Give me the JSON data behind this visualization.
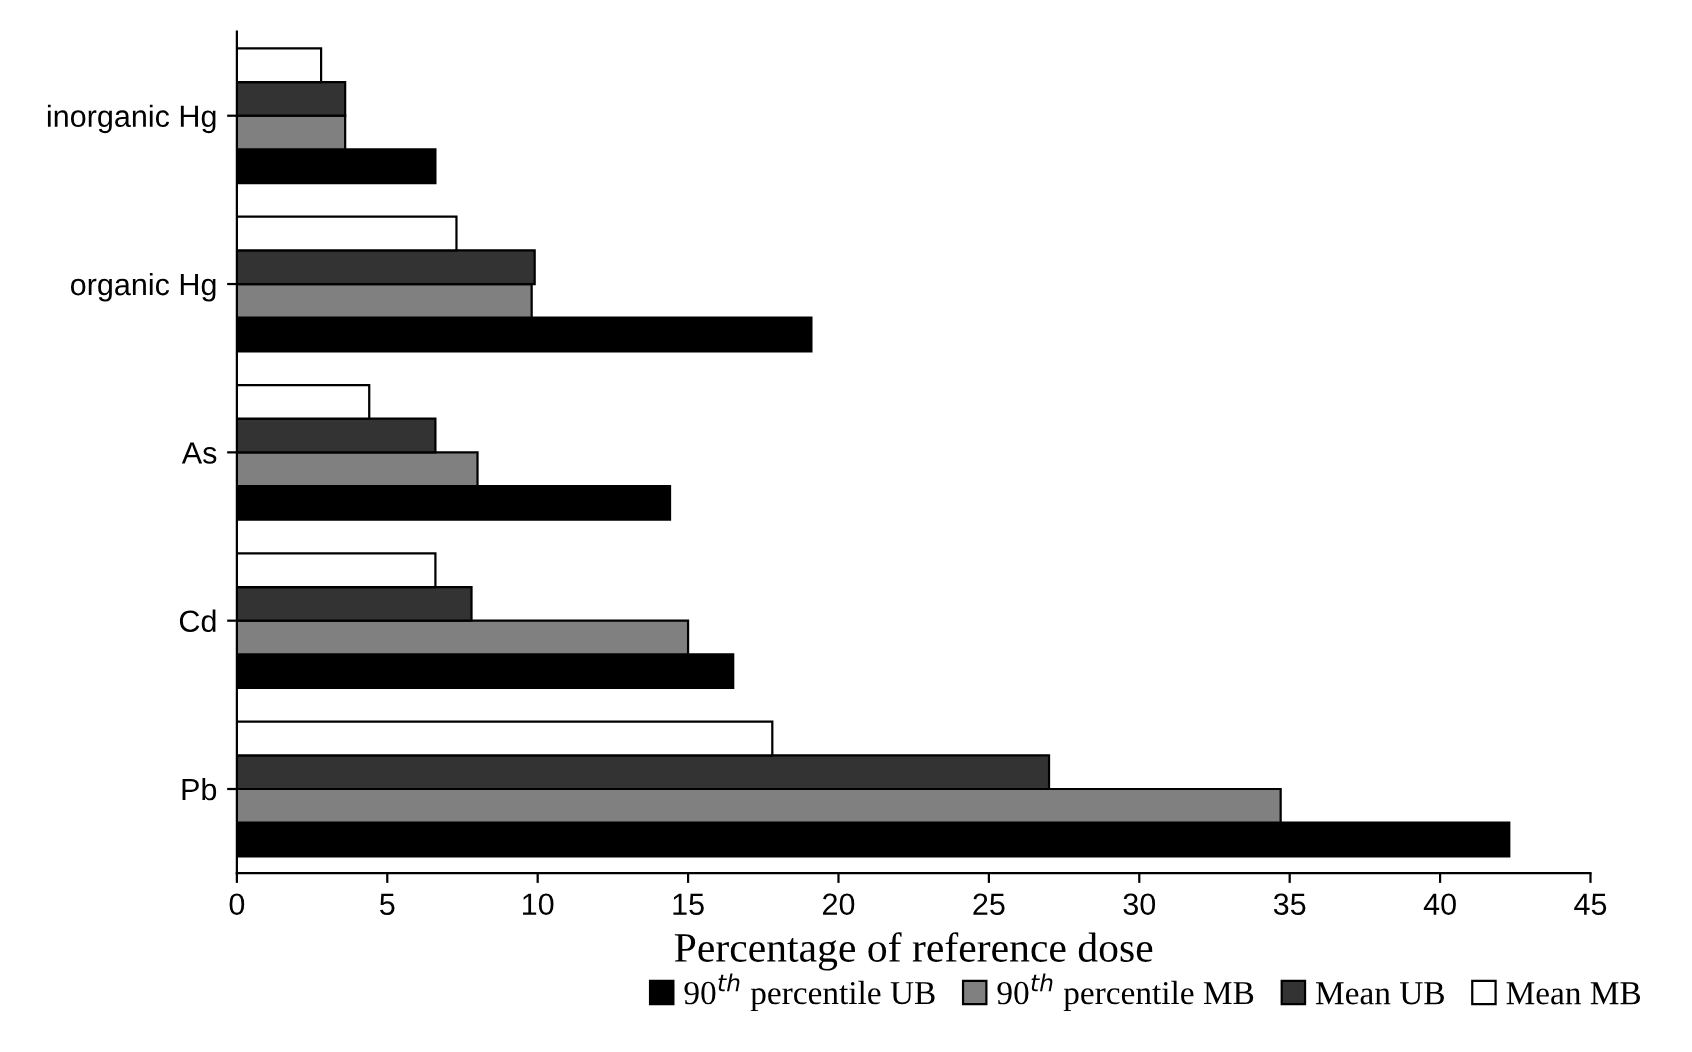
{
  "chart_data": {
    "type": "bar",
    "orientation": "horizontal",
    "xlabel": "Percentage of reference dose",
    "categories": [
      "inorganic Hg",
      "organic Hg",
      "As",
      "Cd",
      "Pb"
    ],
    "series": [
      {
        "name": "90$^{th}$ percentile UB",
        "color": "#000000",
        "values": [
          6.6,
          19.1,
          14.4,
          16.5,
          42.3
        ]
      },
      {
        "name": "90$^{th}$ percentile MB",
        "color": "#808080",
        "values": [
          3.6,
          9.8,
          8.0,
          15.0,
          34.7
        ]
      },
      {
        "name": "Mean UB",
        "color": "#333333",
        "values": [
          3.6,
          9.9,
          6.6,
          7.8,
          27.0
        ]
      },
      {
        "name": "Mean MB",
        "color": "#ffffff",
        "values": [
          2.8,
          7.3,
          4.4,
          6.6,
          17.8
        ]
      }
    ],
    "xlim": [
      0,
      45
    ],
    "xticks": [
      0,
      5,
      10,
      15,
      20,
      25,
      30,
      35,
      40,
      45
    ],
    "grid": false,
    "legend": "bottom right"
  }
}
